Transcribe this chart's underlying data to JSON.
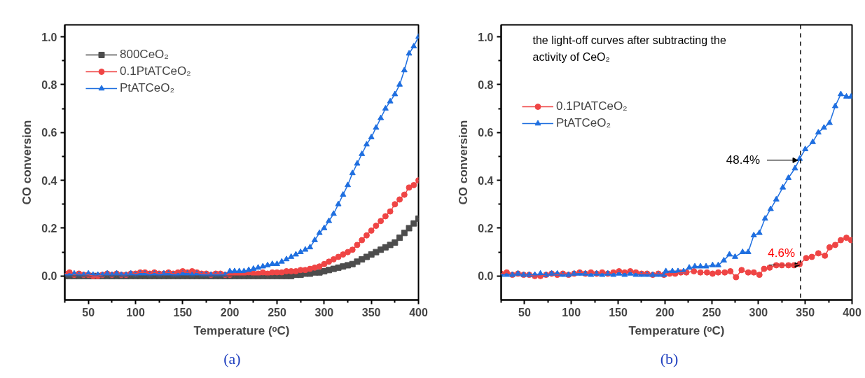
{
  "chart_data": [
    {
      "type": "line",
      "xlabel": "Temperature (ᵒC)",
      "ylabel": "CO conversion",
      "x": [
        25,
        30,
        35,
        40,
        45,
        50,
        55,
        60,
        65,
        70,
        75,
        80,
        85,
        90,
        95,
        100,
        105,
        110,
        115,
        120,
        125,
        130,
        135,
        140,
        145,
        150,
        155,
        160,
        165,
        170,
        175,
        180,
        185,
        190,
        195,
        200,
        205,
        210,
        215,
        220,
        225,
        230,
        235,
        240,
        245,
        250,
        255,
        260,
        265,
        270,
        275,
        280,
        285,
        290,
        295,
        300,
        305,
        310,
        315,
        320,
        325,
        330,
        335,
        340,
        345,
        350,
        355,
        360,
        365,
        370,
        375,
        380,
        385,
        390,
        395,
        400
      ],
      "series": [
        {
          "name": "800CeO₂",
          "color": "#4d4d4d",
          "marker": "square",
          "values": [
            0,
            0,
            0,
            0,
            0,
            0,
            0,
            0,
            0,
            0,
            0,
            0,
            0,
            0,
            0,
            0,
            0,
            0,
            0,
            0,
            0,
            0,
            0,
            0,
            0,
            0,
            0,
            0,
            0,
            0,
            0,
            0,
            0,
            0,
            0,
            0,
            0,
            0,
            0,
            0,
            0,
            0,
            0,
            0,
            0,
            0,
            0,
            0,
            0,
            0.005,
            0.005,
            0.01,
            0.01,
            0.015,
            0.015,
            0.02,
            0.025,
            0.03,
            0.035,
            0.04,
            0.045,
            0.05,
            0.06,
            0.07,
            0.08,
            0.09,
            0.1,
            0.11,
            0.12,
            0.13,
            0.14,
            0.16,
            0.18,
            0.2,
            0.22,
            0.24
          ]
        },
        {
          "name": "0.1PtATCeO₂",
          "color": "#ef4545",
          "marker": "circle",
          "values": [
            0.01,
            0.015,
            0.005,
            0.01,
            0.005,
            0.005,
            0,
            0,
            0.005,
            0.01,
            0.005,
            0.01,
            0.005,
            0.005,
            0.01,
            0.01,
            0.015,
            0.015,
            0.01,
            0.015,
            0.01,
            0.01,
            0.015,
            0.01,
            0.015,
            0.02,
            0.015,
            0.02,
            0.015,
            0.01,
            0.01,
            0.005,
            0.01,
            0.01,
            0.005,
            0.005,
            0.01,
            0.01,
            0.01,
            0.015,
            0.01,
            0.01,
            0.015,
            0.01,
            0.015,
            0.015,
            0.015,
            0.02,
            0.02,
            0.02,
            0.025,
            0.025,
            0.03,
            0.035,
            0.04,
            0.05,
            0.06,
            0.07,
            0.08,
            0.09,
            0.1,
            0.11,
            0.13,
            0.15,
            0.17,
            0.19,
            0.21,
            0.23,
            0.25,
            0.27,
            0.3,
            0.32,
            0.34,
            0.37,
            0.38,
            0.4
          ]
        },
        {
          "name": "PtATCeO₂",
          "color": "#1f6fe0",
          "marker": "triangle",
          "values": [
            0.005,
            0.005,
            0.01,
            0.005,
            0.005,
            0.01,
            0.005,
            0.005,
            0.005,
            0.01,
            0.005,
            0.01,
            0.005,
            0.005,
            0.01,
            0.005,
            0.01,
            0.01,
            0.005,
            0.01,
            0.005,
            0.01,
            0.01,
            0.005,
            0.005,
            0.01,
            0.01,
            0.005,
            0.01,
            0.005,
            0.005,
            0.005,
            0.005,
            0.005,
            0.005,
            0.02,
            0.02,
            0.02,
            0.02,
            0.025,
            0.03,
            0.035,
            0.04,
            0.045,
            0.05,
            0.05,
            0.06,
            0.07,
            0.08,
            0.09,
            0.1,
            0.11,
            0.12,
            0.15,
            0.18,
            0.2,
            0.23,
            0.26,
            0.3,
            0.34,
            0.38,
            0.43,
            0.47,
            0.51,
            0.55,
            0.58,
            0.62,
            0.66,
            0.7,
            0.73,
            0.76,
            0.8,
            0.86,
            0.93,
            0.96,
            1.0
          ]
        }
      ],
      "xlim": [
        25,
        400
      ],
      "ylim": [
        -0.1,
        1.05
      ],
      "xticks": [
        {
          "value": 25,
          "label": null
        },
        50,
        {
          "value": 75,
          "label": null
        },
        100,
        {
          "value": 125,
          "label": null
        },
        150,
        {
          "value": 175,
          "label": null
        },
        200,
        {
          "value": 225,
          "label": null
        },
        250,
        {
          "value": 275,
          "label": null
        },
        300,
        {
          "value": 325,
          "label": null
        },
        350,
        {
          "value": 375,
          "label": null
        },
        400
      ],
      "yticks": [
        {
          "value": 0,
          "label": "0.0"
        },
        {
          "value": 0.1,
          "label": null
        },
        {
          "value": 0.2,
          "label": "0.2"
        },
        {
          "value": 0.3,
          "label": null
        },
        {
          "value": 0.4,
          "label": "0.4"
        },
        {
          "value": 0.5,
          "label": null
        },
        {
          "value": 0.6,
          "label": "0.6"
        },
        {
          "value": 0.7,
          "label": null
        },
        {
          "value": 0.8,
          "label": "0.8"
        },
        {
          "value": 0.9,
          "label": null
        },
        {
          "value": 1.0,
          "label": "1.0"
        }
      ],
      "legend": "top left",
      "grid": false,
      "line_style": "solid",
      "annotations": [
        "(a)"
      ]
    },
    {
      "type": "line",
      "xlabel": "Temperature (ᵒC)",
      "ylabel": "CO conversion",
      "series": [
        {
          "name": "0.1PtATCeO₂",
          "color": "#ef4545",
          "marker": "circle",
          "x": [
            25,
            31,
            37,
            43,
            49,
            55,
            61,
            67,
            73,
            79,
            85,
            91,
            97,
            103,
            109,
            115,
            121,
            127,
            133,
            139,
            145,
            151,
            157,
            163,
            169,
            175,
            181,
            187,
            193,
            199,
            205,
            211,
            217,
            223,
            231,
            238,
            245,
            251,
            257,
            264,
            270,
            276,
            282,
            289,
            295,
            301,
            306,
            312,
            319,
            325,
            332,
            338,
            344,
            351,
            357,
            364,
            371,
            376,
            382,
            388,
            394,
            399
          ],
          "values": [
            0.01,
            0.015,
            0.005,
            0.01,
            0.005,
            0.005,
            0,
            0,
            0.005,
            0.01,
            0.005,
            0.01,
            0.005,
            0.01,
            0.015,
            0.01,
            0.015,
            0.01,
            0.015,
            0.01,
            0.015,
            0.02,
            0.015,
            0.02,
            0.015,
            0.01,
            0.01,
            0.005,
            0.01,
            0.005,
            0.01,
            0.01,
            0.015,
            0.015,
            0.02,
            0.015,
            0.015,
            0.01,
            0.015,
            0.015,
            0.02,
            -0.005,
            0.025,
            0.015,
            0.015,
            0.005,
            0.03,
            0.035,
            0.045,
            0.045,
            0.045,
            0.045,
            0.05,
            0.075,
            0.08,
            0.095,
            0.085,
            0.12,
            0.13,
            0.15,
            0.16,
            0.15
          ]
        },
        {
          "name": "PtATCeO₂",
          "color": "#1f6fe0",
          "marker": "triangle",
          "x": [
            25,
            31,
            37,
            43,
            49,
            55,
            61,
            67,
            73,
            79,
            85,
            91,
            97,
            103,
            109,
            115,
            121,
            127,
            133,
            139,
            145,
            151,
            157,
            163,
            169,
            175,
            181,
            187,
            193,
            199,
            201,
            208,
            214,
            220,
            226,
            232,
            238,
            244,
            251,
            257,
            263,
            269,
            275,
            283,
            289,
            295,
            301,
            307,
            313,
            319,
            326,
            332,
            339,
            344,
            350,
            358,
            364,
            370,
            376,
            382,
            388,
            394,
            399
          ],
          "values": [
            0.005,
            0.005,
            0.005,
            0.01,
            0.005,
            0.005,
            0.005,
            0.01,
            0.005,
            0.01,
            0.01,
            0.005,
            0.005,
            0.01,
            0.01,
            0.01,
            0.005,
            0.01,
            0.005,
            0.01,
            0.005,
            0.01,
            0.005,
            0.01,
            0.005,
            0.005,
            0.005,
            0.005,
            0.005,
            0.005,
            0.02,
            0.02,
            0.02,
            0.02,
            0.035,
            0.04,
            0.04,
            0.04,
            0.045,
            0.045,
            0.065,
            0.09,
            0.08,
            0.1,
            0.1,
            0.17,
            0.18,
            0.24,
            0.28,
            0.32,
            0.37,
            0.41,
            0.45,
            0.49,
            0.53,
            0.56,
            0.6,
            0.62,
            0.64,
            0.71,
            0.76,
            0.75,
            0.75
          ]
        }
      ],
      "xlim": [
        25,
        400
      ],
      "ylim": [
        -0.1,
        1.05
      ],
      "xticks": [
        {
          "value": 25,
          "label": null
        },
        50,
        {
          "value": 75,
          "label": null
        },
        100,
        {
          "value": 125,
          "label": null
        },
        150,
        {
          "value": 175,
          "label": null
        },
        200,
        {
          "value": 225,
          "label": null
        },
        250,
        {
          "value": 275,
          "label": null
        },
        300,
        {
          "value": 325,
          "label": null
        },
        350,
        {
          "value": 375,
          "label": null
        },
        400
      ],
      "yticks": [
        {
          "value": 0,
          "label": "0.0"
        },
        {
          "value": 0.1,
          "label": null
        },
        {
          "value": 0.2,
          "label": "0.2"
        },
        {
          "value": 0.3,
          "label": null
        },
        {
          "value": 0.4,
          "label": "0.4"
        },
        {
          "value": 0.5,
          "label": null
        },
        {
          "value": 0.6,
          "label": "0.6"
        },
        {
          "value": 0.7,
          "label": null
        },
        {
          "value": 0.8,
          "label": "0.8"
        },
        {
          "value": 0.9,
          "label": null
        },
        {
          "value": 1.0,
          "label": "1.0"
        }
      ],
      "legend": "top left",
      "grid": false,
      "line_style": "solid",
      "ref_lines": [
        {
          "axis": "x",
          "value": 345,
          "line_style": "dashed",
          "color": "#000000"
        }
      ],
      "annotations": [
        "the light-off curves after subtracting the activity of CeO₂",
        {
          "text": "48.4%",
          "x": 345,
          "y": 0.484
        },
        {
          "text": "4.6%",
          "x": 345,
          "y": 0.046
        },
        "(b)"
      ]
    }
  ]
}
